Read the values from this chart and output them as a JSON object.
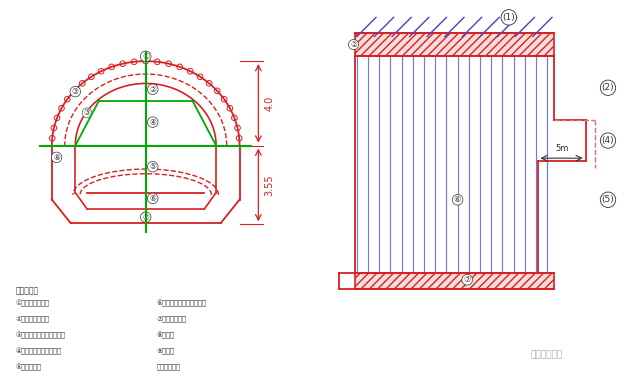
{
  "bg_color": "#ffffff",
  "red": "#d92020",
  "green": "#00aa00",
  "blue": "#4444cc",
  "blue_light": "#7777dd",
  "dark": "#333333",
  "pink_dash": "#e07070",
  "dim_40": "4.0",
  "dim_355": "3.55",
  "dim_5m": "5m",
  "legend_title": "施工顺序：",
  "legend_left": [
    "①治作面前小导管",
    "②上台阶环形开挖",
    "③上台栖档锡筋、网喷支护",
    "④上台阶履带核心土开挖",
    "⑤下台阶开挖"
  ],
  "legend_right": [
    "⑥下台栖档锡筋、网喷支护",
    "⑦回套刚性支护",
    "⑧仯拱址",
    "⑨夢克址",
    "⑪模板二衬呀"
  ],
  "watermark": "隙道施工在线"
}
